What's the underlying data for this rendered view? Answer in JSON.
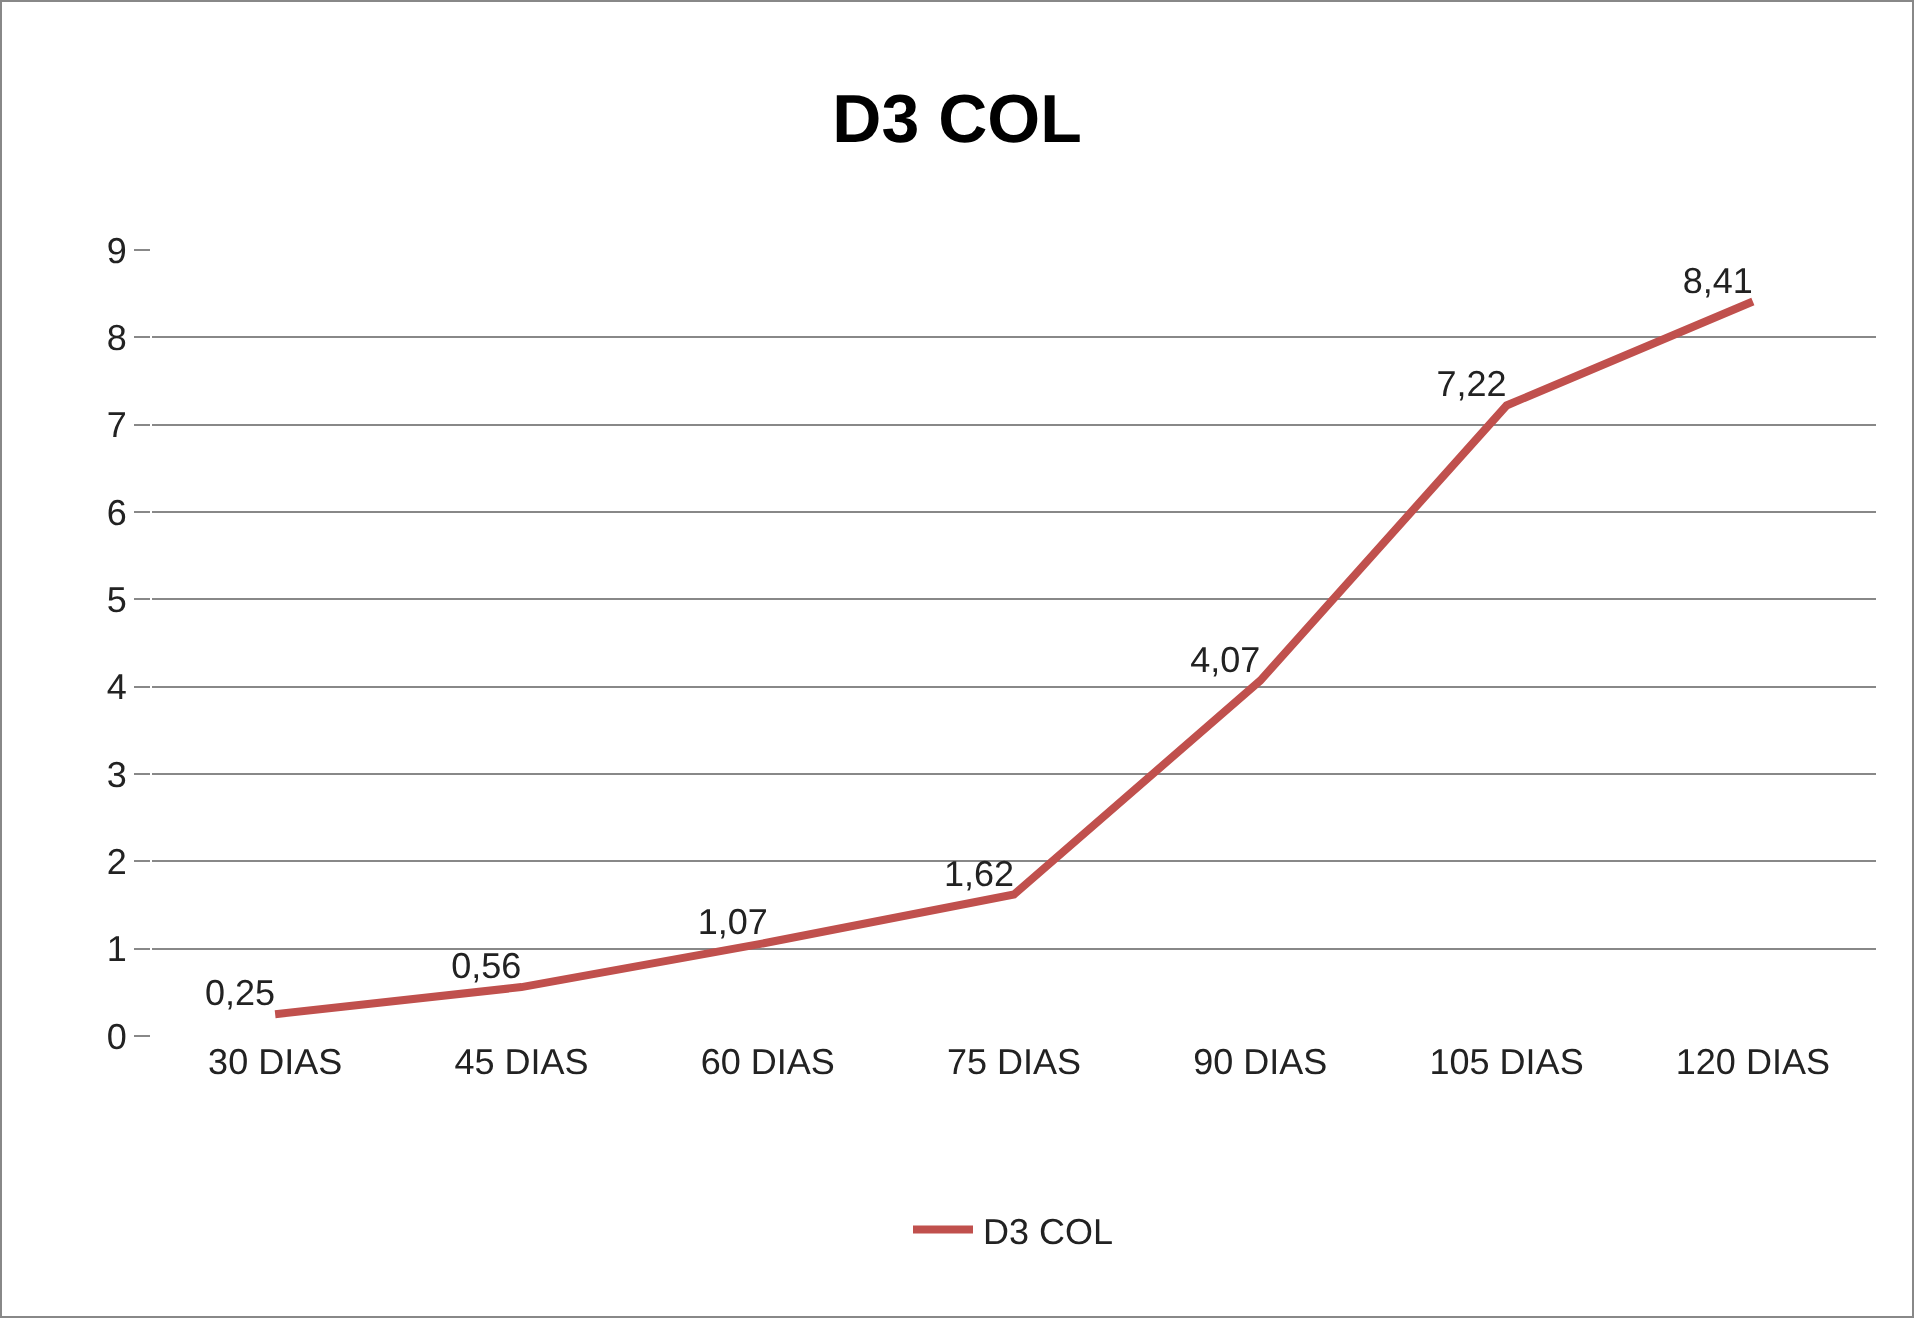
{
  "chart_data": {
    "type": "line",
    "title": "D3 COL",
    "categories": [
      "30 DIAS",
      "45 DIAS",
      "60 DIAS",
      "75 DIAS",
      "90 DIAS",
      "105 DIAS",
      "120 DIAS"
    ],
    "series": [
      {
        "name": "D3 COL",
        "color": "#c0504d",
        "values": [
          0.25,
          0.56,
          1.07,
          1.62,
          4.07,
          7.22,
          8.41
        ],
        "value_labels": [
          "0,25",
          "0,56",
          "1,07",
          "1,62",
          "4,07",
          "7,22",
          "8,41"
        ]
      }
    ],
    "ylim": [
      0,
      9
    ],
    "yticks": [
      0,
      1,
      2,
      3,
      4,
      5,
      6,
      7,
      8,
      9
    ],
    "grid": "y",
    "legend": "bottom",
    "marker": "none",
    "line_style": "solid"
  }
}
